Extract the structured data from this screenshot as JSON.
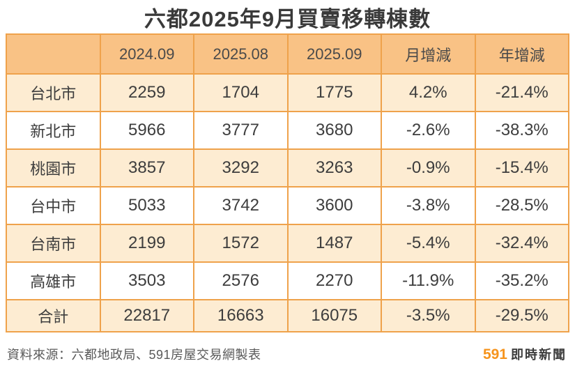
{
  "title": "六都2025年9月買賣移轉棟數",
  "chart_data": {
    "type": "table",
    "title": "六都2025年9月買賣移轉棟數",
    "columns": [
      "",
      "2024.09",
      "2025.08",
      "2025.09",
      "月增減",
      "年增減"
    ],
    "rows": [
      [
        "台北市",
        "2259",
        "1704",
        "1775",
        "4.2%",
        "-21.4%"
      ],
      [
        "新北市",
        "5966",
        "3777",
        "3680",
        "-2.6%",
        "-38.3%"
      ],
      [
        "桃園市",
        "3857",
        "3292",
        "3263",
        "-0.9%",
        "-15.4%"
      ],
      [
        "台中市",
        "5033",
        "3742",
        "3600",
        "-3.8%",
        "-28.5%"
      ],
      [
        "台南市",
        "2199",
        "1572",
        "1487",
        "-5.4%",
        "-32.4%"
      ],
      [
        "高雄市",
        "3503",
        "2576",
        "2270",
        "-11.9%",
        "-35.2%"
      ],
      [
        "合計",
        "22817",
        "16663",
        "16075",
        "-3.5%",
        "-29.5%"
      ]
    ]
  },
  "footer": {
    "source": "資料來源：六都地政局、591房屋交易網製表",
    "brand_number": "591",
    "brand_text": "即時新聞"
  },
  "colors": {
    "header_bg": "#f9c285",
    "alt_row_bg": "#fdecd2",
    "row_bg": "#ffffff",
    "border": "#efa24b",
    "text": "#3d3d3d",
    "title_text": "#3a3a3a",
    "source_text": "#595959",
    "brand_orange": "#f6941d"
  }
}
